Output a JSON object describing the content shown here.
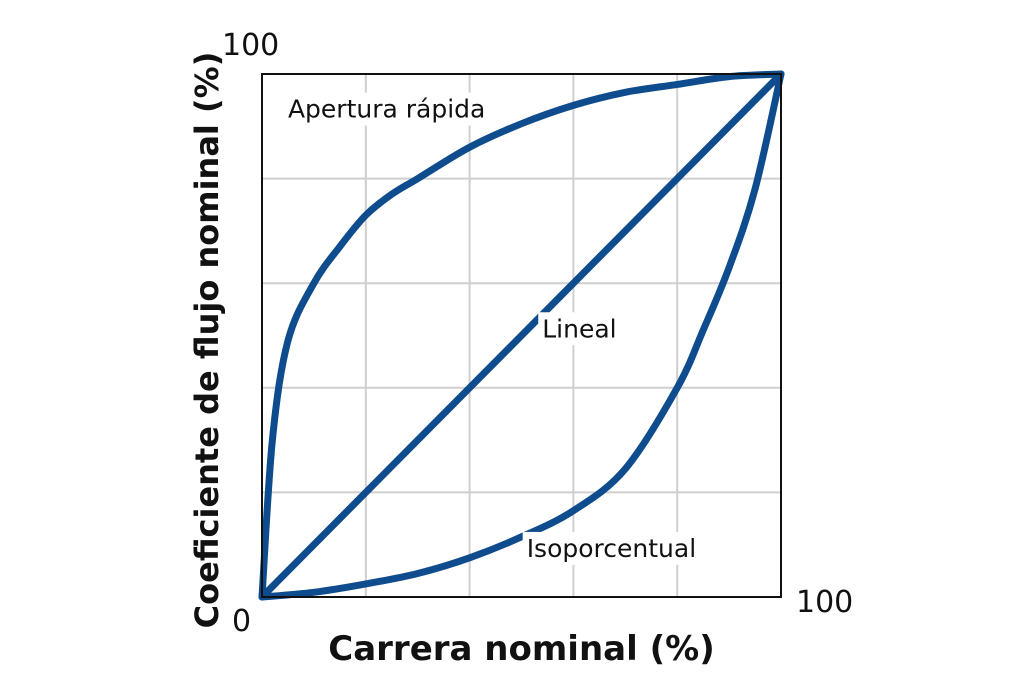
{
  "colors": {
    "curve": "#0f4c8e",
    "grid": "#cfcfcf",
    "frame": "#111111",
    "text": "#111111",
    "background": "#ffffff"
  },
  "chart_data": {
    "type": "line",
    "title": "",
    "xlabel": "Carrera nominal (%)",
    "ylabel": "Coeficiente de flujo nominal (%)",
    "xlim": [
      0,
      100
    ],
    "ylim": [
      0,
      100
    ],
    "x_gridlines": [
      20,
      40,
      60,
      80
    ],
    "y_gridlines": [
      20,
      40,
      60,
      80
    ],
    "grid": true,
    "tick_labels": {
      "origin": "0",
      "y_max": "100",
      "x_max": "100"
    },
    "series": [
      {
        "name": "Apertura rápida",
        "x": [
          0,
          2,
          5,
          10,
          15,
          20,
          25,
          30,
          40,
          50,
          60,
          70,
          80,
          90,
          100
        ],
        "y": [
          0,
          30,
          49,
          60,
          67,
          73,
          77,
          80,
          86,
          90.5,
          94,
          96.5,
          98,
          99.5,
          100
        ]
      },
      {
        "name": "Lineal",
        "x": [
          0,
          100
        ],
        "y": [
          0,
          100
        ]
      },
      {
        "name": "Isoporcentual",
        "x": [
          0,
          10,
          20,
          30,
          40,
          50,
          60,
          70,
          80,
          85,
          90,
          95,
          100
        ],
        "y": [
          0,
          0.9,
          2.5,
          4.5,
          7.5,
          11.5,
          16.5,
          24.5,
          40,
          51,
          63,
          78,
          100
        ]
      }
    ],
    "annotations": [
      {
        "text": "Apertura rápida",
        "x": 5,
        "y": 93
      },
      {
        "text": "Lineal",
        "x": 54,
        "y": 51
      },
      {
        "text": "Isoporcentual",
        "x": 51,
        "y": 9
      }
    ]
  }
}
